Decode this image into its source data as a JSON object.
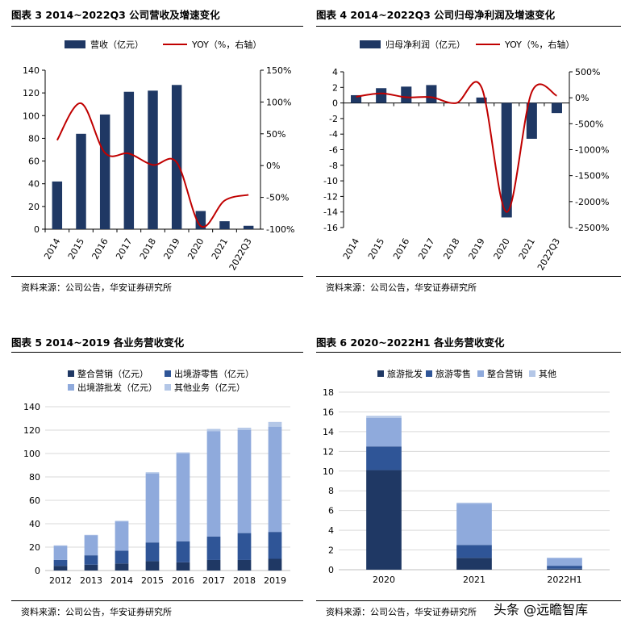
{
  "colors": {
    "navy": "#1f3864",
    "blue": "#2f5597",
    "light": "#8faadc",
    "pale": "#b4c7e7",
    "red": "#c00000",
    "grid": "#000000"
  },
  "panels": [
    {
      "title": "图表 3 2014~2022Q3 公司营收及增速变化",
      "source": "资料来源：公司公告，华安证券研究所"
    },
    {
      "title": "图表 4 2014~2022Q3 公司归母净利润及增速变化",
      "source": "资料来源：公司公告，华安证券研究所"
    },
    {
      "title": "图表 5 2014~2019 各业务营收变化",
      "source": "资料来源：公司公告，华安证券研究所"
    },
    {
      "title": "图表 6 2020~2022H1 各业务营收变化",
      "source": "资料来源：公司公告，华安证券研究所"
    }
  ],
  "watermark": "头条 @远瞻智库",
  "chart_data": [
    {
      "type": "bar+line",
      "title": "图表 3 2014~2022Q3 公司营收及增速变化",
      "categories": [
        "2014",
        "2015",
        "2016",
        "2017",
        "2018",
        "2019",
        "2020",
        "2021",
        "2022Q3"
      ],
      "bar": {
        "name": "营收（亿元）",
        "values": [
          42,
          84,
          101,
          121,
          122,
          127,
          16,
          7,
          3
        ]
      },
      "line": {
        "name": "YOY（%，右轴）",
        "values": [
          40,
          98,
          20,
          19,
          1,
          5,
          -95,
          -55,
          -46
        ]
      },
      "y_left": {
        "min": 0,
        "max": 140,
        "ticks": [
          0,
          20,
          40,
          60,
          80,
          100,
          120,
          140
        ]
      },
      "y_right": {
        "min": -100,
        "max": 150,
        "ticks": [
          "-100%",
          "-50%",
          "0%",
          "50%",
          "100%",
          "150%"
        ]
      }
    },
    {
      "type": "bar+line",
      "title": "图表 4 2014~2022Q3 公司归母净利润及增速变化",
      "categories": [
        "2014",
        "2015",
        "2016",
        "2017",
        "2018",
        "2019",
        "2020",
        "2021",
        "2022Q3"
      ],
      "bar": {
        "name": "归母净利润（亿元）",
        "values": [
          1.0,
          1.9,
          2.1,
          2.3,
          0.0,
          0.7,
          -14.7,
          -4.6,
          -1.3
        ]
      },
      "line": {
        "name": "YOY（%，右轴）",
        "values": [
          20,
          85,
          10,
          10,
          -100,
          200,
          -2200,
          110,
          40
        ]
      },
      "y_left": {
        "min": -16,
        "max": 4,
        "ticks": [
          -16,
          -14,
          -12,
          -10,
          -8,
          -6,
          -4,
          -2,
          0,
          2,
          4
        ]
      },
      "y_right": {
        "min": -2500,
        "max": 500,
        "ticks": [
          "-2500%",
          "-2000%",
          "-1500%",
          "-1000%",
          "-500%",
          "0%",
          "500%"
        ]
      }
    },
    {
      "type": "stacked-bar",
      "title": "图表 5 2014~2019 各业务营收变化",
      "categories": [
        "2012",
        "2013",
        "2014",
        "2015",
        "2016",
        "2017",
        "2018",
        "2019"
      ],
      "series": [
        {
          "name": "整合营销（亿元）",
          "values": [
            4,
            5,
            6,
            8,
            7,
            9,
            9,
            10
          ]
        },
        {
          "name": "出境游零售（亿元）",
          "values": [
            5,
            8,
            11,
            16,
            18,
            20,
            23,
            23
          ]
        },
        {
          "name": "出境游批发（亿元）",
          "values": [
            12,
            17,
            25,
            59,
            75,
            90,
            88,
            90
          ]
        },
        {
          "name": "其他业务（亿元）",
          "values": [
            0.5,
            0.5,
            0.5,
            1,
            1,
            2,
            2,
            4
          ]
        }
      ],
      "ylim": [
        0,
        140
      ],
      "yticks": [
        0,
        20,
        40,
        60,
        80,
        100,
        120,
        140
      ]
    },
    {
      "type": "stacked-bar",
      "title": "图表 6 2020~2022H1 各业务营收变化",
      "categories": [
        "2020",
        "2021",
        "2022H1"
      ],
      "series": [
        {
          "name": "旅游批发",
          "values": [
            10.1,
            1.2,
            0.1
          ]
        },
        {
          "name": "旅游零售",
          "values": [
            2.4,
            1.3,
            0.3
          ]
        },
        {
          "name": "整合营销",
          "values": [
            2.9,
            4.2,
            0.8
          ]
        },
        {
          "name": "其他",
          "values": [
            0.2,
            0.1,
            0.0
          ]
        }
      ],
      "ylim": [
        0,
        18
      ],
      "yticks": [
        0,
        2,
        4,
        6,
        8,
        10,
        12,
        14,
        16,
        18
      ]
    }
  ]
}
